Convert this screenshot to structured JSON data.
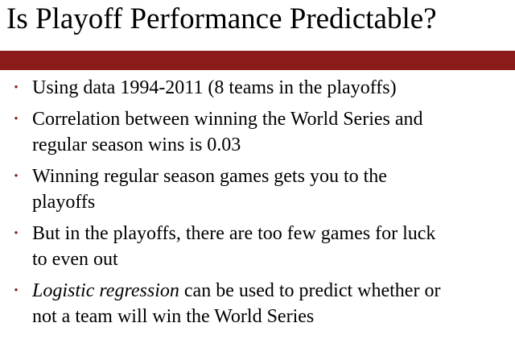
{
  "slide": {
    "title": "Is Playoff Performance Predictable?",
    "accent_color": "#8b1a1a",
    "bullet_glyph": "•",
    "bullets": [
      {
        "line1": "Using data 1994-2011 (8 teams in the playoffs)"
      },
      {
        "line1": "Correlation between winning the World Series and",
        "line2": "regular season wins is 0.03"
      },
      {
        "line1": "Winning regular season games gets you to the",
        "line2": "playoffs"
      },
      {
        "line1": "But in the playoffs, there are too few games for luck",
        "line2": "to even out"
      },
      {
        "line1_emphasis": "Logistic regression",
        "line1_rest": " can be used to predict whether or",
        "line2": "not a team will win the World Series"
      }
    ]
  }
}
